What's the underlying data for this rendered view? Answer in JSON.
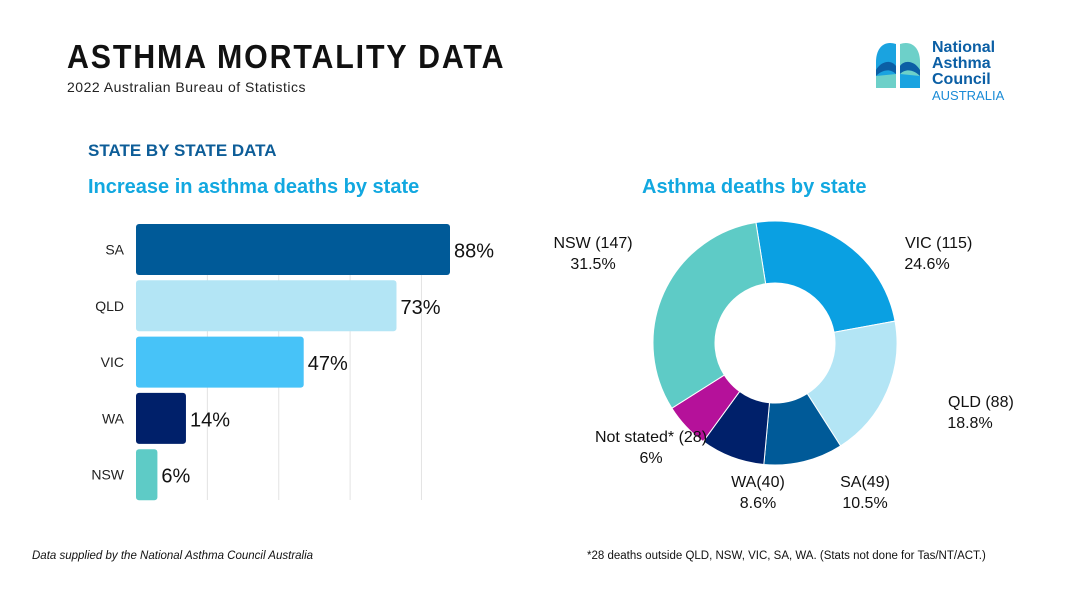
{
  "header": {
    "title": "ASTHMA MORTALITY DATA",
    "subtitle": "2022 Australian Bureau of Statistics"
  },
  "logo": {
    "line1": "National",
    "line2": "Asthma",
    "line3": "Council",
    "line4": "AUSTRALIA"
  },
  "section_title": "STATE BY STATE DATA",
  "footer": {
    "left": "Data supplied by the National Asthma Council Australia",
    "right": "*28 deaths outside QLD, NSW, VIC, SA, WA. (Stats not done for Tas/NT/ACT.)"
  },
  "chart_data": [
    {
      "type": "bar",
      "orientation": "horizontal",
      "title": "Increase in asthma deaths by state",
      "categories": [
        "SA",
        "QLD",
        "VIC",
        "WA",
        "NSW"
      ],
      "values": [
        88,
        73,
        47,
        14,
        6
      ],
      "labels": [
        "88%",
        "73%",
        "47%",
        "14%",
        "6%"
      ],
      "colors": [
        "#005a98",
        "#b3e5f5",
        "#47c3f8",
        "#00206a",
        "#5ecbc6"
      ],
      "xlim": [
        0,
        88
      ],
      "grid": true
    },
    {
      "type": "pie",
      "donut": true,
      "title": "Asthma deaths by state",
      "slices": [
        {
          "label": "VIC (115)",
          "pct_label": "24.6%",
          "value": 115,
          "percent": 24.6,
          "color": "#0aa0e2"
        },
        {
          "label": "QLD (88)",
          "pct_label": "18.8%",
          "value": 88,
          "percent": 18.8,
          "color": "#b3e5f5"
        },
        {
          "label": "SA(49)",
          "pct_label": "10.5%",
          "value": 49,
          "percent": 10.5,
          "color": "#005a98"
        },
        {
          "label": "WA(40)",
          "pct_label": "8.6%",
          "value": 40,
          "percent": 8.6,
          "color": "#00206a"
        },
        {
          "label": "Not stated* (28)",
          "pct_label": "6%",
          "value": 28,
          "percent": 6,
          "color": "#b5119a"
        },
        {
          "label": "NSW (147)",
          "pct_label": "31.5%",
          "value": 147,
          "percent": 31.5,
          "color": "#5ecbc6"
        }
      ]
    }
  ]
}
